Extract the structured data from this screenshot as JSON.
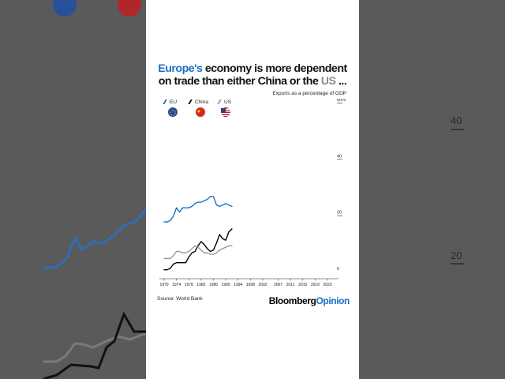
{
  "title_parts": {
    "p1": "Europe's",
    "p2": " economy is more dependent on trade than either China or the ",
    "p3": "US",
    "p4": " ..."
  },
  "subtitle": "Exports as a percentage of GDP",
  "legend": [
    {
      "label": "EU",
      "color": "#1a6fc4",
      "flag": "eu-flag-icon"
    },
    {
      "label": "China",
      "color": "#000000",
      "flag": "china-flag-icon"
    },
    {
      "label": "US",
      "color": "#999999",
      "flag": "us-flag-icon"
    }
  ],
  "source": "Source: World Bank",
  "brand": {
    "part1": "Bloomberg",
    "part2": "Opinion"
  },
  "background": {
    "ytick_upper": "40",
    "ytick_lower": "20"
  },
  "chart_data": {
    "type": "line",
    "title": "Europe's economy is more dependent on trade than either China or the US ...",
    "subtitle": "Exports as a percentage of GDP",
    "xlabel": "",
    "ylabel": "",
    "xlim": [
      1970,
      2023
    ],
    "ylim": [
      0,
      60
    ],
    "xticks": [
      "1970",
      "1974",
      "1978",
      "1982",
      "1986",
      "1990",
      "1994",
      "1998",
      "2002",
      "2007",
      "2011",
      "2015",
      "2019",
      "2023"
    ],
    "yticks": [
      "0",
      "20",
      "40",
      "60%"
    ],
    "series": [
      {
        "name": "EU",
        "color": "#1a6fc4",
        "x": [
          1970,
          1971,
          1972,
          1973,
          1974,
          1975,
          1976,
          1977,
          1978,
          1979,
          1980,
          1981,
          1982,
          1983,
          1984,
          1985,
          1986,
          1987,
          1988,
          1989,
          1990,
          1991,
          1992
        ],
        "values": [
          18.5,
          18.5,
          19,
          20.5,
          23.5,
          22,
          23.5,
          23.5,
          23.5,
          24,
          25,
          25.5,
          25.5,
          26,
          26.5,
          27.5,
          27.5,
          24.5,
          24,
          24.5,
          25,
          24.5,
          24
        ]
      },
      {
        "name": "China",
        "color": "#000000",
        "x": [
          1970,
          1971,
          1972,
          1973,
          1974,
          1975,
          1976,
          1977,
          1978,
          1979,
          1980,
          1981,
          1982,
          1983,
          1984,
          1985,
          1986,
          1987,
          1988,
          1989,
          1990,
          1991,
          1992
        ],
        "values": [
          1.5,
          1.5,
          2,
          3.5,
          4,
          4,
          4,
          4,
          6,
          7.5,
          8,
          10,
          11.5,
          10.5,
          9,
          8,
          8.5,
          11,
          14,
          12.5,
          12,
          15,
          16
        ]
      },
      {
        "name": "US",
        "color": "#999999",
        "x": [
          1970,
          1971,
          1972,
          1973,
          1974,
          1975,
          1976,
          1977,
          1978,
          1979,
          1980,
          1981,
          1982,
          1983,
          1984,
          1985,
          1986,
          1987,
          1988,
          1989,
          1990,
          1991,
          1992
        ],
        "values": [
          5.5,
          5.5,
          5.5,
          6.5,
          8,
          8,
          7.5,
          7.5,
          8,
          9,
          10,
          9.5,
          8.5,
          7.5,
          7.5,
          7,
          7,
          7.5,
          8.5,
          9,
          9.5,
          10,
          10
        ]
      }
    ],
    "grid": false,
    "legend_position": "top-left"
  }
}
